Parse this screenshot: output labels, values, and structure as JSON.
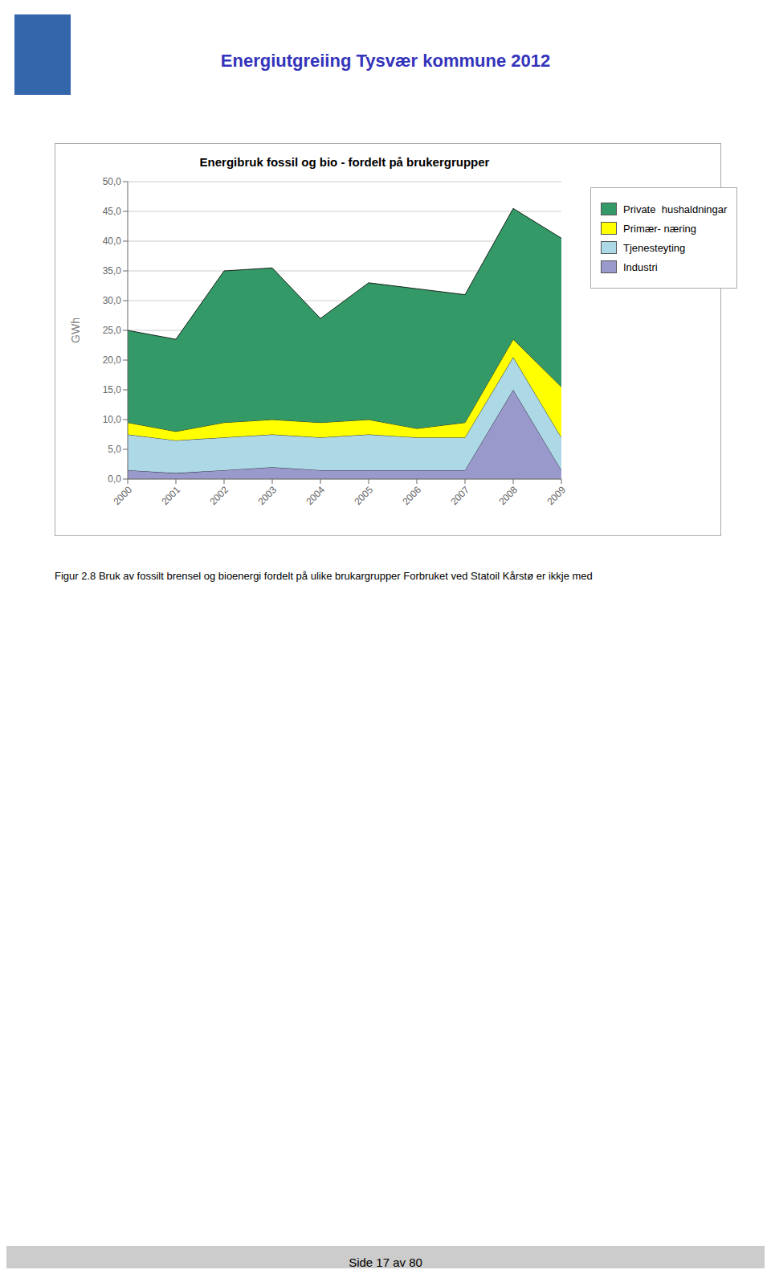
{
  "chart_data": {
    "type": "area",
    "stacked": true,
    "title": "Energibruk fossil og bio -  fordelt på brukergrupper",
    "y_label": "GWh",
    "x": [
      2000,
      2001,
      2002,
      2003,
      2004,
      2005,
      2006,
      2007,
      2008,
      2009
    ],
    "xlim": [
      2000,
      2009
    ],
    "xticks": [
      2000,
      2001,
      2002,
      2003,
      2004,
      2005,
      2006,
      2007,
      2008,
      2009
    ],
    "ylim": [
      0,
      50
    ],
    "yticks": [
      {
        "value": 0,
        "label": "0,0"
      },
      {
        "value": 5,
        "label": "5,0"
      },
      {
        "value": 10,
        "label": "10,0"
      },
      {
        "value": 15,
        "label": "15,0"
      },
      {
        "value": 20,
        "label": "20,0"
      },
      {
        "value": 25,
        "label": "25,0"
      },
      {
        "value": 30,
        "label": "30,0"
      },
      {
        "value": 35,
        "label": "35,0"
      },
      {
        "value": 40,
        "label": "40,0"
      },
      {
        "value": 45,
        "label": "45,0"
      },
      {
        "value": 50,
        "label": "50,0"
      }
    ],
    "grid": true,
    "legend": "right",
    "series": [
      {
        "name": "Industri",
        "color": "#9999cc",
        "values": [
          1.5,
          1.0,
          1.5,
          2.0,
          1.5,
          1.5,
          1.5,
          1.5,
          15.0,
          1.5
        ]
      },
      {
        "name": "Tjenesteyting",
        "color": "#add8e6",
        "values": [
          6.0,
          5.5,
          5.5,
          5.5,
          5.5,
          6.0,
          5.5,
          5.5,
          5.5,
          5.5
        ]
      },
      {
        "name": "Primær- næring",
        "color": "#ffff00",
        "values": [
          2.0,
          1.5,
          2.5,
          2.5,
          2.5,
          2.5,
          1.5,
          2.5,
          3.0,
          8.5
        ]
      },
      {
        "name": "Private  hushaldningar",
        "color": "#339966",
        "values": [
          15.5,
          15.5,
          25.5,
          25.5,
          17.5,
          23.0,
          23.5,
          21.5,
          22.0,
          25.0
        ]
      }
    ],
    "annotations": [
      "Energiutgreiing Tysvær kommune 2012",
      "Figur 2.8 Bruk av fossilt brensel og bioenergi fordelt på ulike brukargrupper Forbruket ved Statoil Kårstø er ikkje med",
      "Side 17 av 80"
    ]
  }
}
